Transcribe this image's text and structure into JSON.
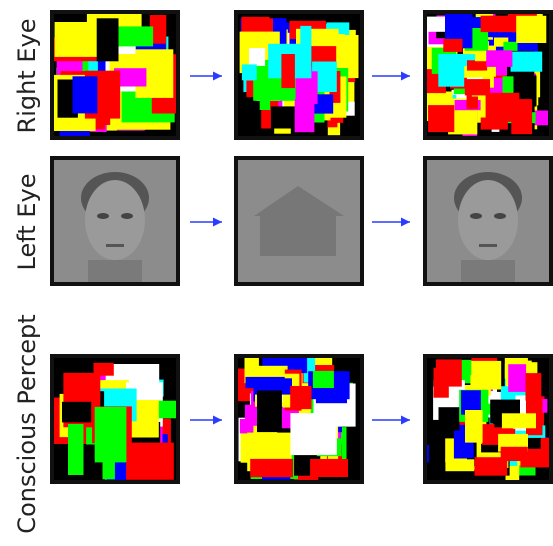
{
  "rows": [
    {
      "label": "Right Eye"
    },
    {
      "label": "Left Eye"
    },
    {
      "label": "Conscious Percept"
    }
  ]
}
